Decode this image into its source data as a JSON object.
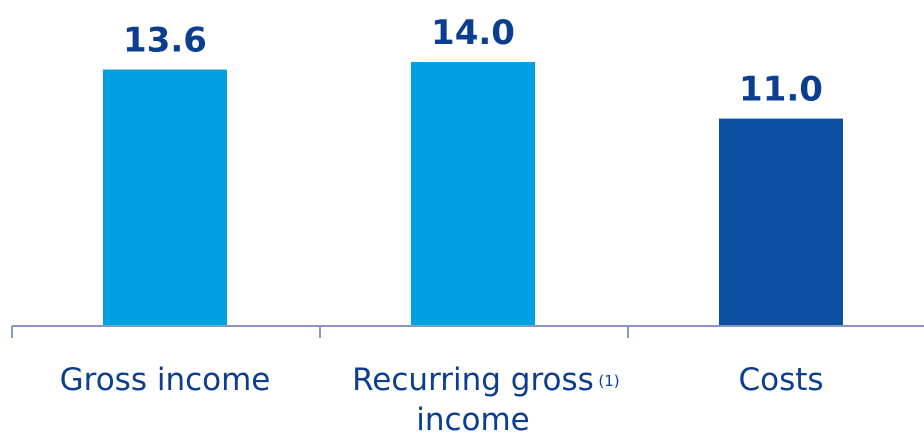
{
  "chart_data": {
    "type": "bar",
    "categories": [
      "Gross income",
      "Recurring gross income",
      "Costs"
    ],
    "category_lines": [
      [
        "Gross income"
      ],
      [
        "Recurring gross",
        "income"
      ],
      [
        "Costs"
      ]
    ],
    "category_footnotes": [
      "",
      "(1)",
      ""
    ],
    "values": [
      13.6,
      14.0,
      11.0
    ],
    "value_labels": [
      "13.6",
      "14.0",
      "11.0"
    ],
    "bar_colors": [
      "#00A0E3",
      "#00A0E3",
      "#0B4FA0"
    ],
    "title": "",
    "xlabel": "",
    "ylabel": "",
    "ylim": [
      0,
      14.0
    ],
    "grid": false,
    "legend": "none"
  },
  "colors": {
    "label_text": "#0B3E91",
    "axis_line": "#8A95C4"
  }
}
